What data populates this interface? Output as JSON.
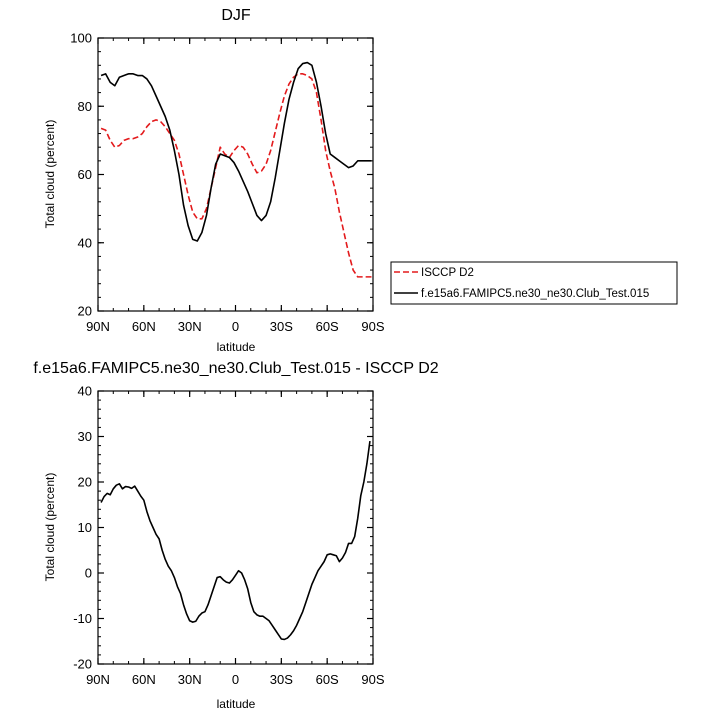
{
  "chart_data": [
    {
      "type": "line",
      "title": "DJF",
      "xlabel": "latitude",
      "ylabel": "Total cloud (percent)",
      "xlim": [
        90,
        -90
      ],
      "ylim": [
        20,
        100
      ],
      "x_tick_values": [
        90,
        60,
        30,
        0,
        -30,
        -60,
        -90
      ],
      "x_tick_labels": [
        "90N",
        "60N",
        "30N",
        "0",
        "30S",
        "60S",
        "90S"
      ],
      "y_tick_values": [
        20,
        40,
        60,
        80,
        100
      ],
      "y_tick_labels": [
        "20",
        "40",
        "60",
        "80",
        "100"
      ],
      "legend_position": "right",
      "series": [
        {
          "name": "ISCCP D2",
          "color": "#e31a1c",
          "dash": "dashed",
          "x": [
            88,
            85,
            82,
            79,
            76,
            73,
            70,
            67,
            64,
            61,
            58,
            55,
            52,
            49,
            46,
            43,
            40,
            37,
            34,
            31,
            28,
            25,
            22,
            19,
            16,
            13,
            10,
            7,
            4,
            1,
            -2,
            -5,
            -8,
            -11,
            -14,
            -17,
            -20,
            -23,
            -26,
            -29,
            -32,
            -35,
            -38,
            -41,
            -44,
            -47,
            -50,
            -53,
            -56,
            -59,
            -62,
            -65,
            -68,
            -71,
            -74,
            -77,
            -80,
            -83,
            -86,
            -89
          ],
          "y": [
            73.5,
            73,
            70,
            68,
            68.5,
            70,
            70.5,
            70.5,
            71,
            72,
            74,
            75.5,
            76,
            75.5,
            74,
            72,
            70,
            66,
            60,
            54,
            49,
            47,
            47,
            50,
            56,
            62,
            68,
            66,
            65,
            67,
            68.5,
            68,
            66,
            63,
            60.5,
            61,
            63,
            67,
            72.5,
            78,
            83,
            86.5,
            88.5,
            89.5,
            89.5,
            89,
            88,
            84,
            76,
            67,
            61,
            56,
            49,
            43,
            37,
            32,
            30,
            30,
            30,
            30
          ]
        },
        {
          "name": "f.e15a6.FAMIPC5.ne30_ne30.Club_Test.015",
          "color": "#000000",
          "dash": "solid",
          "x": [
            88,
            85,
            82,
            79,
            76,
            73,
            70,
            67,
            64,
            61,
            58,
            55,
            52,
            49,
            46,
            43,
            40,
            37,
            34,
            31,
            28,
            25,
            22,
            19,
            16,
            13,
            10,
            7,
            4,
            1,
            -2,
            -5,
            -8,
            -11,
            -14,
            -17,
            -20,
            -23,
            -26,
            -29,
            -32,
            -35,
            -38,
            -41,
            -44,
            -47,
            -50,
            -53,
            -56,
            -59,
            -62,
            -65,
            -68,
            -71,
            -74,
            -77,
            -80,
            -83,
            -86,
            -89
          ],
          "y": [
            89,
            89.5,
            87,
            86,
            88.5,
            89,
            89.5,
            89.5,
            89,
            89,
            88,
            86,
            83,
            80,
            77,
            73,
            67,
            60,
            51,
            45,
            41,
            40.5,
            43,
            48,
            56,
            63,
            66,
            65.5,
            65,
            63.5,
            61,
            58,
            55,
            51.5,
            48,
            46.5,
            48,
            52,
            59,
            67,
            75,
            82,
            87,
            91,
            92.5,
            92.8,
            92,
            87,
            80,
            72,
            66,
            65,
            64,
            63,
            62,
            62.5,
            64,
            64,
            64,
            64
          ]
        }
      ]
    },
    {
      "type": "line",
      "title": "f.e15a6.FAMIPC5.ne30_ne30.Club_Test.015 - ISCCP D2",
      "xlabel": "latitude",
      "ylabel": "Total cloud (percent)",
      "xlim": [
        90,
        -90
      ],
      "ylim": [
        -20,
        40
      ],
      "x_tick_values": [
        90,
        60,
        30,
        0,
        -30,
        -60,
        -90
      ],
      "x_tick_labels": [
        "90N",
        "60N",
        "30N",
        "0",
        "30S",
        "60S",
        "90S"
      ],
      "y_tick_values": [
        -20,
        -10,
        0,
        10,
        20,
        30,
        40
      ],
      "y_tick_labels": [
        "-20",
        "-10",
        "0",
        "10",
        "20",
        "30",
        "40"
      ],
      "series": [
        {
          "color": "#000000",
          "dash": "solid",
          "x": [
            88,
            86,
            84,
            82,
            80,
            78,
            76,
            74,
            72,
            70,
            68,
            66,
            64,
            62,
            60,
            58,
            56,
            54,
            52,
            50,
            48,
            46,
            44,
            42,
            40,
            38,
            36,
            34,
            32,
            30,
            28,
            26,
            24,
            22,
            20,
            18,
            16,
            14,
            12,
            10,
            8,
            6,
            4,
            2,
            0,
            -2,
            -4,
            -6,
            -8,
            -10,
            -12,
            -14,
            -16,
            -18,
            -20,
            -22,
            -24,
            -26,
            -28,
            -30,
            -32,
            -34,
            -36,
            -38,
            -40,
            -42,
            -44,
            -46,
            -48,
            -50,
            -52,
            -54,
            -56,
            -58,
            -60,
            -62,
            -64,
            -66,
            -68,
            -70,
            -72,
            -74,
            -76,
            -78,
            -80,
            -82,
            -84,
            -86,
            -88
          ],
          "y": [
            15.5,
            16.8,
            17.5,
            17.2,
            18.5,
            19.3,
            19.6,
            18.5,
            19,
            18.9,
            18.6,
            19.1,
            18,
            16.9,
            16,
            13.5,
            11.5,
            10,
            8.5,
            7.5,
            5,
            3,
            1.5,
            0.5,
            -1,
            -3,
            -4.5,
            -7,
            -9,
            -10.5,
            -10.8,
            -10.6,
            -9.5,
            -8.8,
            -8.5,
            -7,
            -5,
            -3,
            -1,
            -0.8,
            -1.5,
            -2,
            -2.2,
            -1.5,
            -0.5,
            0.5,
            0,
            -1.5,
            -3.5,
            -6.5,
            -8.5,
            -9.2,
            -9.5,
            -9.5,
            -10,
            -10.5,
            -11.5,
            -12.5,
            -13.5,
            -14.5,
            -14.6,
            -14.3,
            -13.6,
            -12.7,
            -11.5,
            -10,
            -8.5,
            -6.5,
            -4.5,
            -2.5,
            -1,
            0.5,
            1.5,
            2.5,
            4,
            4.2,
            4,
            3.8,
            2.5,
            3.3,
            4.5,
            6.5,
            6.5,
            8,
            12,
            17,
            20,
            24,
            29
          ]
        }
      ]
    }
  ]
}
